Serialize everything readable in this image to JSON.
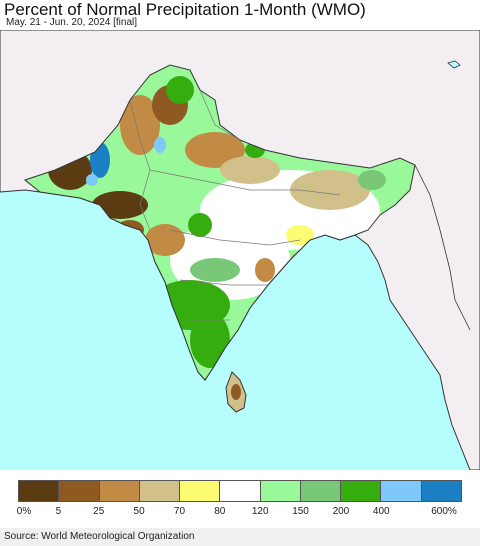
{
  "header": {
    "title": "Percent of Normal Precipitation 1-Month (WMO)",
    "subtitle": "May. 21 - Jun. 20, 2024 [final]"
  },
  "map": {
    "region": "South Asia",
    "colors": {
      "ocean": "#b6fdfd",
      "land_outside": "#f2eef2",
      "borders": "#333333",
      "internal_borders": "#7a7a7a"
    }
  },
  "legend": {
    "colors": [
      "#5a3b12",
      "#8e5a22",
      "#c18a45",
      "#d2c08a",
      "#fdfd74",
      "#ffffff",
      "#99f899",
      "#78c878",
      "#36ad0e",
      "#7fc8fb",
      "#1b7fc3"
    ],
    "labels": [
      "0%",
      "5",
      "25",
      "50",
      "70",
      "80",
      "120",
      "150",
      "200",
      "400",
      "600%"
    ]
  },
  "source": "Source: World Meteorological Organization"
}
